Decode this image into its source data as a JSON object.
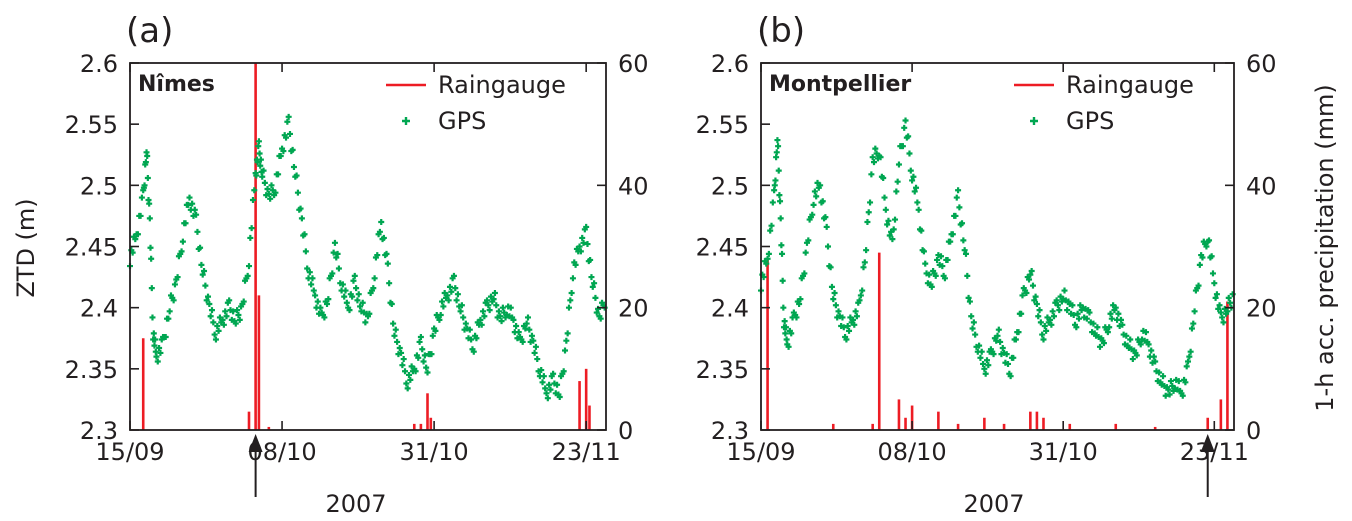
{
  "panel_labels": [
    "(a)",
    "(b)"
  ],
  "year_label": "2007",
  "left_axis_title": "ZTD (m)",
  "right_axis_title": "1-h acc. precipitation (mm)",
  "colors": {
    "gps": "#00a651",
    "rain": "#ed1c24",
    "axis": "#231f20"
  },
  "legend": {
    "rain": "Raingauge",
    "gps": "GPS"
  },
  "chart_data": [
    {
      "type": "scatter",
      "panel": "(a)",
      "station": "Nîmes",
      "x_type": "date",
      "x_range": [
        "2007-09-15",
        "2007-11-26"
      ],
      "x_ticks": [
        {
          "date": "2007-09-15",
          "label": "15/09"
        },
        {
          "date": "2007-10-08",
          "label": "08/10"
        },
        {
          "date": "2007-10-31",
          "label": "31/10"
        },
        {
          "date": "2007-11-23",
          "label": "23/11"
        }
      ],
      "y_left": {
        "label": "ZTD (m)",
        "range": [
          2.3,
          2.6
        ],
        "ticks": [
          "2.3",
          "2.35",
          "2.4",
          "2.45",
          "2.5",
          "2.55",
          "2.6"
        ]
      },
      "y_right": {
        "label": "1-h acc. precipitation (mm)",
        "range": [
          0,
          60
        ],
        "ticks": [
          "0",
          "20",
          "40",
          "60"
        ]
      },
      "arrow_date": "2007-10-04",
      "series": [
        {
          "name": "GPS",
          "type": "scatter",
          "axis": "left",
          "points": [
            [
              "2007-09-15",
              2.44
            ],
            [
              "2007-09-16",
              2.46
            ],
            [
              "2007-09-17",
              2.49
            ],
            [
              "2007-09-17T12",
              2.53
            ],
            [
              "2007-09-18",
              2.47
            ],
            [
              "2007-09-18T12",
              2.38
            ],
            [
              "2007-09-19",
              2.36
            ],
            [
              "2007-09-20",
              2.37
            ],
            [
              "2007-09-21",
              2.4
            ],
            [
              "2007-09-22",
              2.42
            ],
            [
              "2007-09-23",
              2.46
            ],
            [
              "2007-09-24",
              2.49
            ],
            [
              "2007-09-25",
              2.47
            ],
            [
              "2007-09-26",
              2.43
            ],
            [
              "2007-09-27",
              2.4
            ],
            [
              "2007-09-28",
              2.38
            ],
            [
              "2007-09-29",
              2.39
            ],
            [
              "2007-09-30",
              2.4
            ],
            [
              "2007-10-01",
              2.39
            ],
            [
              "2007-10-02",
              2.4
            ],
            [
              "2007-10-03",
              2.44
            ],
            [
              "2007-10-04",
              2.51
            ],
            [
              "2007-10-04T12",
              2.53
            ],
            [
              "2007-10-05",
              2.51
            ],
            [
              "2007-10-06",
              2.49
            ],
            [
              "2007-10-07",
              2.5
            ],
            [
              "2007-10-08",
              2.53
            ],
            [
              "2007-10-09",
              2.55
            ],
            [
              "2007-10-10",
              2.51
            ],
            [
              "2007-10-11",
              2.47
            ],
            [
              "2007-10-12",
              2.43
            ],
            [
              "2007-10-13",
              2.41
            ],
            [
              "2007-10-14",
              2.39
            ],
            [
              "2007-10-15",
              2.41
            ],
            [
              "2007-10-16",
              2.45
            ],
            [
              "2007-10-17",
              2.42
            ],
            [
              "2007-10-18",
              2.4
            ],
            [
              "2007-10-19",
              2.42
            ],
            [
              "2007-10-20",
              2.4
            ],
            [
              "2007-10-21",
              2.39
            ],
            [
              "2007-10-22",
              2.43
            ],
            [
              "2007-10-23",
              2.47
            ],
            [
              "2007-10-24",
              2.43
            ],
            [
              "2007-10-25",
              2.38
            ],
            [
              "2007-10-26",
              2.36
            ],
            [
              "2007-10-27",
              2.34
            ],
            [
              "2007-10-28",
              2.35
            ],
            [
              "2007-10-29",
              2.37
            ],
            [
              "2007-10-30",
              2.35
            ],
            [
              "2007-10-31",
              2.38
            ],
            [
              "2007-11-01",
              2.4
            ],
            [
              "2007-11-02",
              2.41
            ],
            [
              "2007-11-03",
              2.42
            ],
            [
              "2007-11-04",
              2.4
            ],
            [
              "2007-11-05",
              2.38
            ],
            [
              "2007-11-06",
              2.37
            ],
            [
              "2007-11-07",
              2.39
            ],
            [
              "2007-11-08",
              2.4
            ],
            [
              "2007-11-09",
              2.41
            ],
            [
              "2007-11-10",
              2.39
            ],
            [
              "2007-11-11",
              2.4
            ],
            [
              "2007-11-12",
              2.39
            ],
            [
              "2007-11-13",
              2.37
            ],
            [
              "2007-11-14",
              2.39
            ],
            [
              "2007-11-15",
              2.37
            ],
            [
              "2007-11-16",
              2.35
            ],
            [
              "2007-11-17",
              2.33
            ],
            [
              "2007-11-18",
              2.34
            ],
            [
              "2007-11-19",
              2.33
            ],
            [
              "2007-11-20",
              2.37
            ],
            [
              "2007-11-21",
              2.43
            ],
            [
              "2007-11-22",
              2.45
            ],
            [
              "2007-11-23",
              2.46
            ],
            [
              "2007-11-24",
              2.42
            ],
            [
              "2007-11-25",
              2.39
            ],
            [
              "2007-11-26",
              2.41
            ]
          ]
        },
        {
          "name": "Raingauge",
          "type": "bar",
          "axis": "right",
          "points": [
            [
              "2007-09-17",
              15
            ],
            [
              "2007-10-03",
              3
            ],
            [
              "2007-10-04",
              60
            ],
            [
              "2007-10-04T12",
              22
            ],
            [
              "2007-10-06",
              0.5
            ],
            [
              "2007-10-28",
              1
            ],
            [
              "2007-10-29",
              1
            ],
            [
              "2007-10-30",
              6
            ],
            [
              "2007-10-30T12",
              2
            ],
            [
              "2007-11-22",
              8
            ],
            [
              "2007-11-23",
              10
            ],
            [
              "2007-11-23T12",
              4
            ]
          ]
        }
      ]
    },
    {
      "type": "scatter",
      "panel": "(b)",
      "station": "Montpellier",
      "x_type": "date",
      "x_range": [
        "2007-09-15",
        "2007-11-26"
      ],
      "x_ticks": [
        {
          "date": "2007-09-15",
          "label": "15/09"
        },
        {
          "date": "2007-10-08",
          "label": "08/10"
        },
        {
          "date": "2007-10-31",
          "label": "31/10"
        },
        {
          "date": "2007-11-23",
          "label": "23/11"
        }
      ],
      "y_left": {
        "label": "",
        "range": [
          2.3,
          2.6
        ],
        "ticks": [
          "2.3",
          "2.35",
          "2.4",
          "2.45",
          "2.5",
          "2.55",
          "2.6"
        ]
      },
      "y_right": {
        "label": "1-h acc. precipitation (mm)",
        "range": [
          0,
          60
        ],
        "ticks": [
          "0",
          "20",
          "40",
          "60"
        ]
      },
      "arrow_date": "2007-11-22",
      "series": [
        {
          "name": "GPS",
          "type": "scatter",
          "axis": "left",
          "points": [
            [
              "2007-09-15",
              2.42
            ],
            [
              "2007-09-16",
              2.44
            ],
            [
              "2007-09-17",
              2.49
            ],
            [
              "2007-09-17T12",
              2.54
            ],
            [
              "2007-09-18",
              2.47
            ],
            [
              "2007-09-18T12",
              2.39
            ],
            [
              "2007-09-19",
              2.37
            ],
            [
              "2007-09-20",
              2.39
            ],
            [
              "2007-09-21",
              2.41
            ],
            [
              "2007-09-22",
              2.45
            ],
            [
              "2007-09-23",
              2.49
            ],
            [
              "2007-09-24",
              2.5
            ],
            [
              "2007-09-25",
              2.46
            ],
            [
              "2007-09-26",
              2.41
            ],
            [
              "2007-09-27",
              2.39
            ],
            [
              "2007-09-28",
              2.38
            ],
            [
              "2007-09-29",
              2.39
            ],
            [
              "2007-09-30",
              2.4
            ],
            [
              "2007-10-01",
              2.45
            ],
            [
              "2007-10-02",
              2.52
            ],
            [
              "2007-10-03",
              2.53
            ],
            [
              "2007-10-04",
              2.48
            ],
            [
              "2007-10-05",
              2.45
            ],
            [
              "2007-10-06",
              2.52
            ],
            [
              "2007-10-07",
              2.55
            ],
            [
              "2007-10-08",
              2.51
            ],
            [
              "2007-10-09",
              2.48
            ],
            [
              "2007-10-10",
              2.43
            ],
            [
              "2007-10-11",
              2.42
            ],
            [
              "2007-10-12",
              2.44
            ],
            [
              "2007-10-13",
              2.43
            ],
            [
              "2007-10-14",
              2.46
            ],
            [
              "2007-10-15",
              2.49
            ],
            [
              "2007-10-16",
              2.45
            ],
            [
              "2007-10-17",
              2.39
            ],
            [
              "2007-10-18",
              2.37
            ],
            [
              "2007-10-19",
              2.35
            ],
            [
              "2007-10-20",
              2.36
            ],
            [
              "2007-10-21",
              2.38
            ],
            [
              "2007-10-22",
              2.36
            ],
            [
              "2007-10-23",
              2.35
            ],
            [
              "2007-10-24",
              2.38
            ],
            [
              "2007-10-25",
              2.41
            ],
            [
              "2007-10-26",
              2.43
            ],
            [
              "2007-10-27",
              2.4
            ],
            [
              "2007-10-28",
              2.38
            ],
            [
              "2007-10-29",
              2.39
            ],
            [
              "2007-10-30",
              2.4
            ],
            [
              "2007-10-31",
              2.41
            ],
            [
              "2007-11-01",
              2.4
            ],
            [
              "2007-11-02",
              2.39
            ],
            [
              "2007-11-03",
              2.4
            ],
            [
              "2007-11-04",
              2.39
            ],
            [
              "2007-11-05",
              2.38
            ],
            [
              "2007-11-06",
              2.37
            ],
            [
              "2007-11-07",
              2.39
            ],
            [
              "2007-11-08",
              2.4
            ],
            [
              "2007-11-09",
              2.38
            ],
            [
              "2007-11-10",
              2.37
            ],
            [
              "2007-11-11",
              2.36
            ],
            [
              "2007-11-12",
              2.38
            ],
            [
              "2007-11-13",
              2.37
            ],
            [
              "2007-11-14",
              2.35
            ],
            [
              "2007-11-15",
              2.34
            ],
            [
              "2007-11-16",
              2.33
            ],
            [
              "2007-11-17",
              2.34
            ],
            [
              "2007-11-18",
              2.33
            ],
            [
              "2007-11-19",
              2.35
            ],
            [
              "2007-11-20",
              2.4
            ],
            [
              "2007-11-21",
              2.44
            ],
            [
              "2007-11-22",
              2.46
            ],
            [
              "2007-11-23",
              2.42
            ],
            [
              "2007-11-24",
              2.39
            ],
            [
              "2007-11-25",
              2.4
            ],
            [
              "2007-11-26",
              2.41
            ]
          ]
        },
        {
          "name": "Raingauge",
          "type": "bar",
          "axis": "right",
          "points": [
            [
              "2007-09-16",
              28
            ],
            [
              "2007-09-26",
              1
            ],
            [
              "2007-10-02",
              1
            ],
            [
              "2007-10-03",
              29
            ],
            [
              "2007-10-06",
              5
            ],
            [
              "2007-10-07",
              2
            ],
            [
              "2007-10-08",
              4
            ],
            [
              "2007-10-12",
              3
            ],
            [
              "2007-10-15",
              1
            ],
            [
              "2007-10-19",
              2
            ],
            [
              "2007-10-22",
              1
            ],
            [
              "2007-10-26",
              3
            ],
            [
              "2007-10-27",
              3
            ],
            [
              "2007-10-28",
              2
            ],
            [
              "2007-11-01",
              1
            ],
            [
              "2007-11-08",
              1
            ],
            [
              "2007-11-14",
              0.5
            ],
            [
              "2007-11-22",
              2
            ],
            [
              "2007-11-24",
              5
            ],
            [
              "2007-11-25",
              21
            ]
          ]
        }
      ]
    }
  ]
}
